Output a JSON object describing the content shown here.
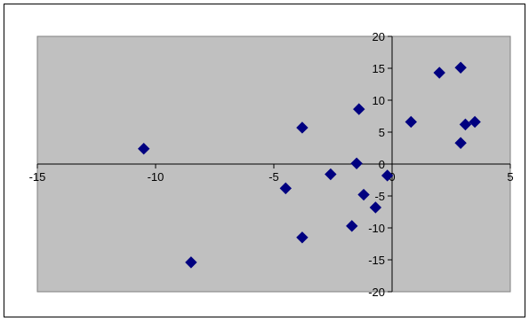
{
  "chart_data": {
    "type": "scatter",
    "title": "",
    "xlabel": "",
    "ylabel": "",
    "xlim": [
      -15,
      5
    ],
    "ylim": [
      -20,
      20
    ],
    "x_ticks": [
      -15,
      -10,
      -5,
      0,
      5
    ],
    "y_ticks": [
      -20,
      -15,
      -10,
      -5,
      0,
      5,
      10,
      15,
      20
    ],
    "x_tick_labels": [
      "-15",
      "-10",
      "-5",
      "0",
      "5"
    ],
    "y_tick_labels": [
      "-20",
      "-15",
      "-10",
      "-5",
      "0",
      "5",
      "10",
      "15",
      "20"
    ],
    "grid": false,
    "legend": "none",
    "plot_area_color": "#c0c0c0",
    "marker_color": "#000080",
    "marker": "diamond",
    "series": [
      {
        "points": [
          {
            "x": -10.5,
            "y": 2.4
          },
          {
            "x": -8.5,
            "y": -15.4
          },
          {
            "x": -4.5,
            "y": -3.8
          },
          {
            "x": -3.8,
            "y": 5.7
          },
          {
            "x": -3.8,
            "y": -11.5
          },
          {
            "x": -2.6,
            "y": -1.6
          },
          {
            "x": -1.7,
            "y": -9.7
          },
          {
            "x": -1.5,
            "y": 0.1
          },
          {
            "x": -1.4,
            "y": 8.6
          },
          {
            "x": -1.2,
            "y": -4.8
          },
          {
            "x": -0.7,
            "y": -6.8
          },
          {
            "x": -0.2,
            "y": -1.8
          },
          {
            "x": 0.8,
            "y": 6.6
          },
          {
            "x": 2.0,
            "y": 14.3
          },
          {
            "x": 2.9,
            "y": 15.1
          },
          {
            "x": 2.9,
            "y": 3.3
          },
          {
            "x": 3.1,
            "y": 6.2
          },
          {
            "x": 3.5,
            "y": 6.6
          }
        ]
      }
    ]
  }
}
